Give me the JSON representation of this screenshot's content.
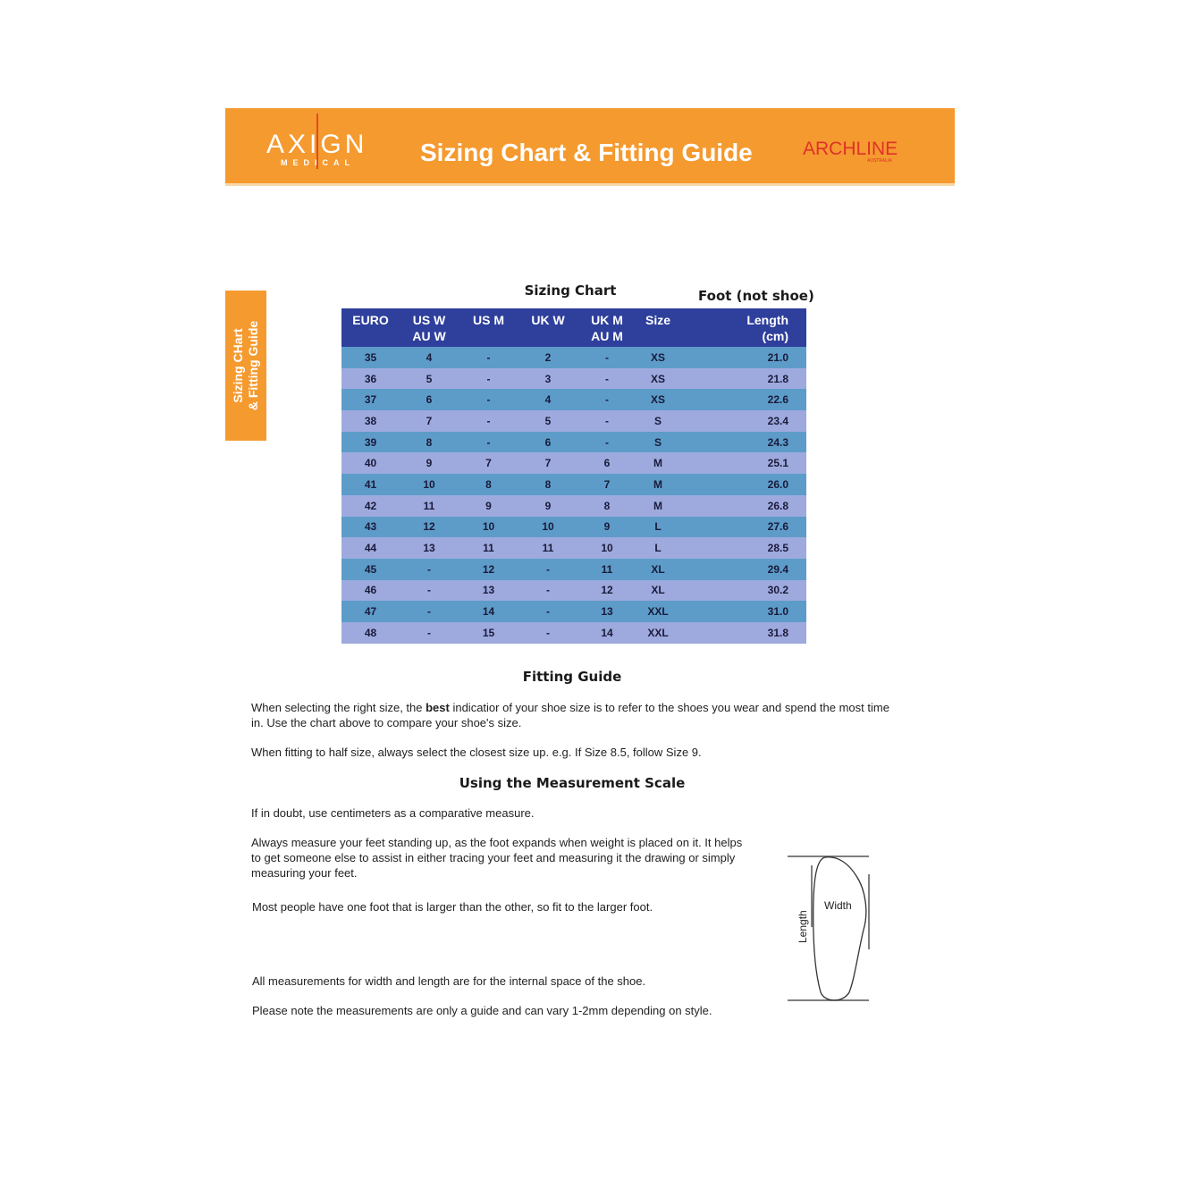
{
  "header": {
    "brand_left": "AXIGN",
    "brand_left_sub": "MEDICAL",
    "title": "Sizing Chart & Fitting Guide",
    "brand_right": "ARCHLINE",
    "brand_right_sub": "AUSTRALIA",
    "accent_color": "#f59a2f",
    "brand_right_color": "#e0312a"
  },
  "side_tab": {
    "line1": "Sizing CHart",
    "line2": "& Fitting Guide"
  },
  "sizing_chart": {
    "title": "Sizing Chart",
    "note": "Foot (not shoe)",
    "header_color": "#2e3f9c",
    "row_colors": [
      "#5d9cc9",
      "#9eaade"
    ],
    "columns": [
      {
        "line1": "EURO",
        "line2": ""
      },
      {
        "line1": "US W",
        "line2": "AU W"
      },
      {
        "line1": "US M",
        "line2": ""
      },
      {
        "line1": "UK W",
        "line2": ""
      },
      {
        "line1": "UK M",
        "line2": "AU M"
      },
      {
        "line1": "Size",
        "line2": ""
      },
      {
        "line1": "Length",
        "line2": "(cm)"
      }
    ],
    "rows": [
      [
        "35",
        "4",
        "-",
        "2",
        "-",
        "XS",
        "21.0"
      ],
      [
        "36",
        "5",
        "-",
        "3",
        "-",
        "XS",
        "21.8"
      ],
      [
        "37",
        "6",
        "-",
        "4",
        "-",
        "XS",
        "22.6"
      ],
      [
        "38",
        "7",
        "-",
        "5",
        "-",
        "S",
        "23.4"
      ],
      [
        "39",
        "8",
        "-",
        "6",
        "-",
        "S",
        "24.3"
      ],
      [
        "40",
        "9",
        "7",
        "7",
        "6",
        "M",
        "25.1"
      ],
      [
        "41",
        "10",
        "8",
        "8",
        "7",
        "M",
        "26.0"
      ],
      [
        "42",
        "11",
        "9",
        "9",
        "8",
        "M",
        "26.8"
      ],
      [
        "43",
        "12",
        "10",
        "10",
        "9",
        "L",
        "27.6"
      ],
      [
        "44",
        "13",
        "11",
        "11",
        "10",
        "L",
        "28.5"
      ],
      [
        "45",
        "-",
        "12",
        "-",
        "11",
        "XL",
        "29.4"
      ],
      [
        "46",
        "-",
        "13",
        "-",
        "12",
        "XL",
        "30.2"
      ],
      [
        "47",
        "-",
        "14",
        "-",
        "13",
        "XXL",
        "31.0"
      ],
      [
        "48",
        "-",
        "15",
        "-",
        "14",
        "XXL",
        "31.8"
      ]
    ]
  },
  "fitting_guide": {
    "title": "Fitting Guide",
    "p1_before": "When selecting the right size, the ",
    "p1_bold": "best",
    "p1_after": " indicatior of your shoe size is to refer to the shoes you wear and spend the most time in. Use the chart above to compare your shoe's size.",
    "p2": "When fitting to half size, always select the closest size up. e.g. If Size 8.5, follow Size 9."
  },
  "measurement": {
    "title": "Using the Measurement Scale",
    "p1": "If in doubt, use centimeters as a comparative measure.",
    "p2": "Always measure your feet standing up, as the foot expands when weight is placed on it. It helps to get someone else to assist in either tracing your feet and measuring it the drawing or simply measuring your feet.",
    "p3": "Most people have one foot that is larger than the other, so fit to the larger foot.",
    "p4": "All measurements for width and length are for the internal space of the shoe.",
    "p5": "Please note the measurements are only a guide and can vary 1-2mm depending on style.",
    "diagram": {
      "width_label": "Width",
      "length_label": "Length"
    }
  }
}
